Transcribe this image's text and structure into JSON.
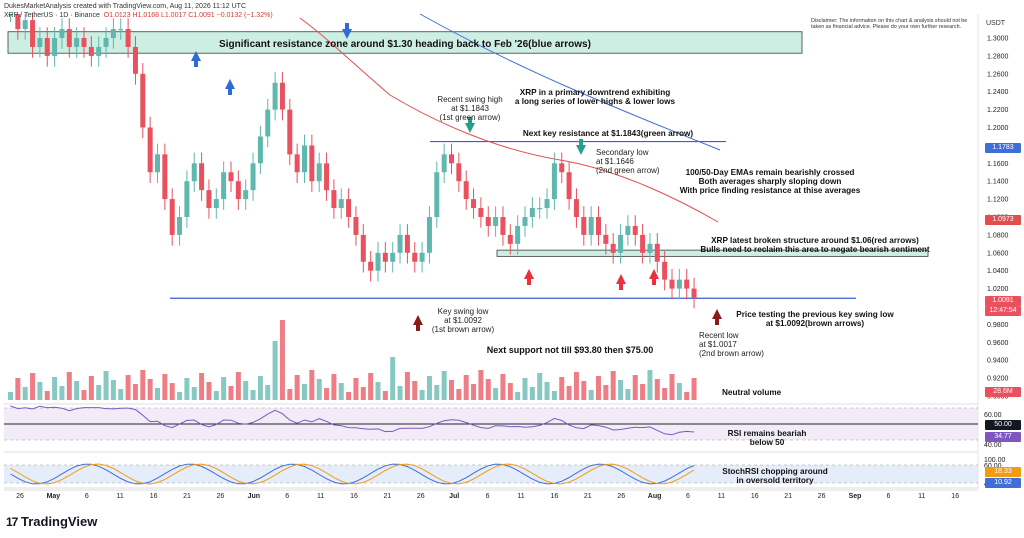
{
  "header": {
    "author_line": "DukesMarketAnalysis created with TradingView.com, Aug 11, 2026 11:12 UTC",
    "symbol": "XRP / TetherUS · 1D · Binance",
    "ohlc": "O1.0123 H1.0168 L1.0017 C1.0091 −0.0132 (−1.32%)"
  },
  "disclaimer": "Disclaimer: The information on this chart & analysis should not be taken as financial advice. Please do your own further research.",
  "currency": "USDT",
  "brand": "TradingView",
  "colors": {
    "bull": "#5fb7ad",
    "bear": "#e8515d",
    "ema50": "#e34d4d",
    "ema100": "#3f6fd6",
    "support": "#3a5bd9",
    "zone": "#cdeee3"
  },
  "annotations": {
    "resistance_zone": "Significant resistance zone around $1.30 heading back to Feb '26(blue arrows)",
    "downtrend": [
      "XRP in a primary downtrend exhibiting",
      "a long series of lower highs & lower lows"
    ],
    "swing_high": [
      "Recent swing high",
      "at $1.1843",
      "(1st green arrow)"
    ],
    "next_resistance": "Next key resistance at $1.1843(green arrow)",
    "secondary_low": [
      "Secondary low",
      "at $1.1646",
      "(2nd green arrow)"
    ],
    "emas": [
      "100/50-Day EMAs remain bearishly crossed",
      "Both averages sharply sloping down",
      "With price finding resistance at thise averages"
    ],
    "broken_structure": [
      "XRP latest broken structure around $1.06(red arrows)",
      "Bulls need to reclaim this area to negate bearish sentiment"
    ],
    "key_swing_low": [
      "Key swing low",
      "at $1.0092",
      "(1st brown arrow)"
    ],
    "testing": [
      "Price testing the previous key swing low",
      "at $1.0092(brown arrows)"
    ],
    "recent_low": [
      "Recent low",
      "at $1.0017",
      "(2nd brown arrow)"
    ],
    "next_support": "Next support not till $93.80 then $75.00",
    "volume": "Neutral volume",
    "rsi": [
      "RSI remains beariah",
      "below 50"
    ],
    "stochrsi": [
      "StochRSI chopping around",
      "in oversold territory"
    ]
  },
  "price_tags": [
    {
      "value": "1.1783",
      "color": "#3f6fd6"
    },
    {
      "value": "1.0973",
      "color": "#e34d4d"
    },
    {
      "value": "1.0091",
      "color": "#e8515d"
    },
    {
      "value": "12:47:54",
      "color": "#e8515d"
    },
    {
      "value": "28.6M",
      "color": "#e8515d"
    }
  ],
  "rsi_tags": [
    {
      "value": "50.00",
      "color": "#131722"
    },
    {
      "value": "34.77",
      "color": "#7e57c2"
    }
  ],
  "stoch_tags": [
    {
      "value": "18.33",
      "color": "#f39c12"
    },
    {
      "value": "10.92",
      "color": "#3f6fd6"
    }
  ],
  "chart_data": {
    "type": "candlestick",
    "y_axis_ticks": [
      "1.3000",
      "1.2800",
      "1.2600",
      "1.2400",
      "1.2200",
      "1.2000",
      "1.1800",
      "1.1600",
      "1.1400",
      "1.1200",
      "1.1000",
      "1.0800",
      "1.0600",
      "1.0400",
      "1.0200",
      "1.0000",
      "0.9800",
      "0.9600",
      "0.9400",
      "0.9200",
      "0.9000"
    ],
    "ylim": [
      0.9,
      1.31
    ],
    "x_axis_ticks": [
      "26",
      "May",
      "6",
      "11",
      "16",
      "21",
      "26",
      "Jun",
      "6",
      "11",
      "16",
      "21",
      "26",
      "Jul",
      "6",
      "11",
      "16",
      "21",
      "26",
      "Aug",
      "6",
      "11",
      "16",
      "21",
      "26",
      "Sep",
      "6",
      "11",
      "16"
    ],
    "resistance_zone": [
      1.283,
      1.307
    ],
    "key_resistance": 1.1843,
    "broken_structure_zone": [
      1.056,
      1.063
    ],
    "key_support": 1.0092,
    "rsi_ticks": [
      "60.00",
      "40.00"
    ],
    "rsi_bands": [
      70,
      30
    ],
    "stoch_ticks": [
      "100.00",
      "60.00",
      "40.00"
    ],
    "stoch_bands": [
      80,
      20
    ]
  }
}
